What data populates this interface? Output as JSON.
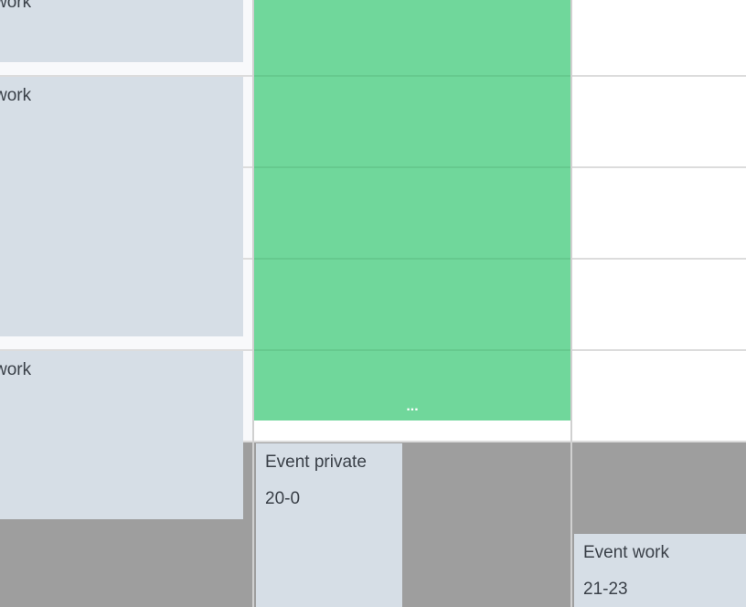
{
  "colors": {
    "event_bg": "#d6dee6",
    "green_event": "#70d79b",
    "offhours": "#9e9e9e",
    "grid_line": "#dcdcdc"
  },
  "left_column": {
    "events": [
      {
        "title": "work"
      },
      {
        "title": "work"
      },
      {
        "title": "work"
      }
    ]
  },
  "green_event": {
    "more_label": "..."
  },
  "bottom_events": [
    {
      "title": "Event private",
      "time": "20-0"
    },
    {
      "title": "Event work",
      "time": "21-23"
    }
  ]
}
